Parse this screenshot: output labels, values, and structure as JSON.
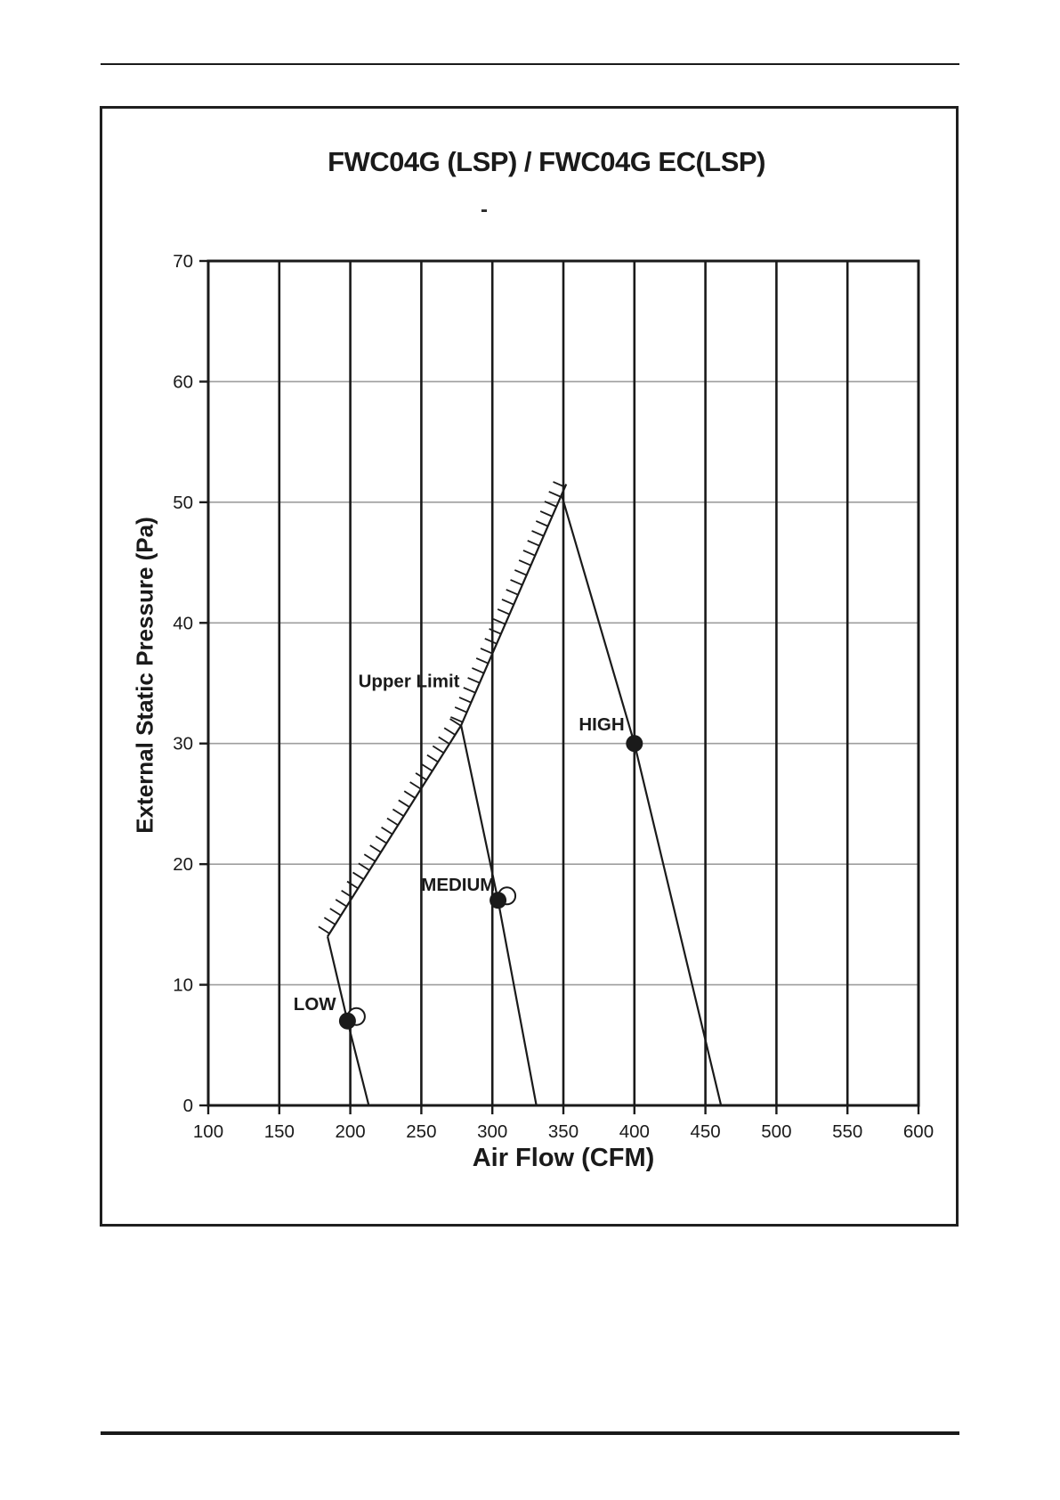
{
  "figure": {
    "title": "FWC04G (LSP) / FWC04G EC(LSP)",
    "stray_mark": "-"
  },
  "chart_data": {
    "type": "line",
    "title": "FWC04G (LSP) / FWC04G EC(LSP)",
    "xlabel": "Air Flow (CFM)",
    "ylabel": "External Static Pressure (Pa)",
    "xlim": [
      100,
      600
    ],
    "ylim": [
      0,
      70
    ],
    "x_ticks": [
      100,
      150,
      200,
      250,
      300,
      350,
      400,
      450,
      500,
      550,
      600
    ],
    "y_ticks": [
      0,
      10,
      20,
      30,
      40,
      50,
      60,
      70
    ],
    "grid_on": true,
    "legend": "none",
    "ink_color": "#1a1a1a",
    "grid": {
      "vertical_color": "#1a1a1a",
      "horizontal_color": "#9e9e9e",
      "border_color": "#1a1a1a"
    },
    "series": [
      {
        "name": "upper-limit",
        "label": "Upper Limit",
        "points": [
          [
            184,
            14
          ],
          [
            278,
            31.5
          ],
          [
            352,
            51.5
          ]
        ],
        "hatched": true,
        "label_at": [
          277,
          35.2
        ],
        "label_anchor": "end"
      },
      {
        "name": "low",
        "label": "LOW",
        "points": [
          [
            184,
            14
          ],
          [
            198,
            7
          ],
          [
            213,
            0
          ]
        ],
        "marker": [
          198,
          7
        ],
        "ghost_marker": true,
        "label_at": [
          190,
          8.4
        ],
        "label_anchor": "end"
      },
      {
        "name": "medium",
        "label": "MEDIUM",
        "points": [
          [
            278,
            31.5
          ],
          [
            304,
            17
          ],
          [
            331,
            0
          ]
        ],
        "marker": [
          304,
          17
        ],
        "ghost_marker": true,
        "label_at": [
          302,
          18.3
        ],
        "label_anchor": "end"
      },
      {
        "name": "high",
        "label": "HIGH",
        "points": [
          [
            349,
            50.5
          ],
          [
            400,
            30
          ],
          [
            461,
            0
          ]
        ],
        "marker": [
          400,
          30
        ],
        "ghost_marker": false,
        "label_at": [
          393,
          31.6
        ],
        "label_anchor": "end"
      }
    ],
    "operating_points": [
      {
        "mode": "LOW",
        "air_flow_cfm": 200,
        "esp_pa": 7
      },
      {
        "mode": "MEDIUM",
        "air_flow_cfm": 305,
        "esp_pa": 17
      },
      {
        "mode": "HIGH",
        "air_flow_cfm": 400,
        "esp_pa": 30
      }
    ]
  }
}
